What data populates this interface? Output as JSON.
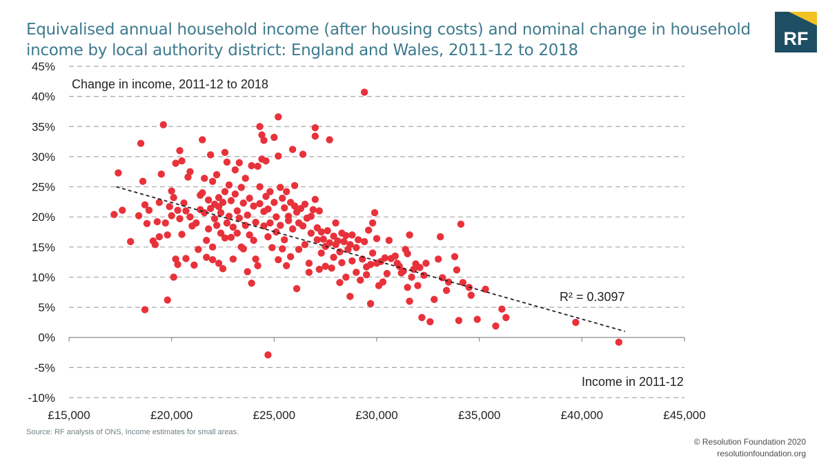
{
  "header": {
    "title": "Equivalised annual household income (after housing costs) and nominal change in household income by local authority district: England and Wales, 2011-12 to 2018"
  },
  "logo": {
    "text": "RF",
    "bg_color": "#1d4e63",
    "accent_color": "#f2c224"
  },
  "footer": {
    "source": "Source: RF analysis of ONS, Income estimates for small areas.",
    "copyright": "© Resolution Foundation 2020",
    "website": "resolutionfoundation.org"
  },
  "chart_data": {
    "type": "scatter",
    "title": "Equivalised annual household income (after housing costs) and nominal change in household income by local authority district: England and Wales, 2011-12 to 2018",
    "xlabel": "Income in 2011-12",
    "ylabel": "Change in income, 2011-12 to 2018",
    "xlim": [
      15000,
      45000
    ],
    "ylim": [
      -10,
      45
    ],
    "x_ticks": [
      15000,
      20000,
      25000,
      30000,
      35000,
      40000,
      45000
    ],
    "x_tick_labels": [
      "£15,000",
      "£20,000",
      "£25,000",
      "£30,000",
      "£35,000",
      "£40,000",
      "£45,000"
    ],
    "y_ticks": [
      -10,
      -5,
      0,
      5,
      10,
      15,
      20,
      25,
      30,
      35,
      40,
      45
    ],
    "y_tick_labels": [
      "-10%",
      "-5%",
      "0%",
      "5%",
      "10%",
      "15%",
      "20%",
      "25%",
      "30%",
      "35%",
      "40%",
      "45%"
    ],
    "grid": "horizontal dashed",
    "point_color": "#e8323b",
    "trendline": {
      "x": [
        17300,
        42100
      ],
      "y": [
        25.0,
        1.0
      ],
      "style": "dashed",
      "color": "#222222"
    },
    "r_squared_label": "R² = 0.3097",
    "points": [
      {
        "x": 17200,
        "y": 20.4
      },
      {
        "x": 17400,
        "y": 27.3
      },
      {
        "x": 17600,
        "y": 21.1
      },
      {
        "x": 18000,
        "y": 15.9
      },
      {
        "x": 18400,
        "y": 20.2
      },
      {
        "x": 18500,
        "y": 32.2
      },
      {
        "x": 18600,
        "y": 25.9
      },
      {
        "x": 18700,
        "y": 22.0
      },
      {
        "x": 18700,
        "y": 4.6
      },
      {
        "x": 18800,
        "y": 18.9
      },
      {
        "x": 18900,
        "y": 21.1
      },
      {
        "x": 19100,
        "y": 16.0
      },
      {
        "x": 19200,
        "y": 15.4
      },
      {
        "x": 19300,
        "y": 19.2
      },
      {
        "x": 19400,
        "y": 22.4
      },
      {
        "x": 19400,
        "y": 16.7
      },
      {
        "x": 19500,
        "y": 27.1
      },
      {
        "x": 19600,
        "y": 35.3
      },
      {
        "x": 19700,
        "y": 19.0
      },
      {
        "x": 19800,
        "y": 17.0
      },
      {
        "x": 19800,
        "y": 6.2
      },
      {
        "x": 19900,
        "y": 21.7
      },
      {
        "x": 20000,
        "y": 20.2
      },
      {
        "x": 20000,
        "y": 24.3
      },
      {
        "x": 20100,
        "y": 23.2
      },
      {
        "x": 20100,
        "y": 10.0
      },
      {
        "x": 20200,
        "y": 28.9
      },
      {
        "x": 20200,
        "y": 13.0
      },
      {
        "x": 20300,
        "y": 21.1
      },
      {
        "x": 20300,
        "y": 12.1
      },
      {
        "x": 20400,
        "y": 31.0
      },
      {
        "x": 20400,
        "y": 19.7
      },
      {
        "x": 20500,
        "y": 29.3
      },
      {
        "x": 20500,
        "y": 17.1
      },
      {
        "x": 20600,
        "y": 22.3
      },
      {
        "x": 20700,
        "y": 21.0
      },
      {
        "x": 20700,
        "y": 13.1
      },
      {
        "x": 20800,
        "y": 26.6
      },
      {
        "x": 20900,
        "y": 27.5
      },
      {
        "x": 20900,
        "y": 20.0
      },
      {
        "x": 21000,
        "y": 18.5
      },
      {
        "x": 21100,
        "y": 12.0
      },
      {
        "x": 21200,
        "y": 19.0
      },
      {
        "x": 21300,
        "y": 14.6
      },
      {
        "x": 21400,
        "y": 21.2
      },
      {
        "x": 21400,
        "y": 23.6
      },
      {
        "x": 21500,
        "y": 32.8
      },
      {
        "x": 21500,
        "y": 24.0
      },
      {
        "x": 21600,
        "y": 20.7
      },
      {
        "x": 21600,
        "y": 26.4
      },
      {
        "x": 21700,
        "y": 16.1
      },
      {
        "x": 21700,
        "y": 13.3
      },
      {
        "x": 21800,
        "y": 22.8
      },
      {
        "x": 21800,
        "y": 18.0
      },
      {
        "x": 21900,
        "y": 30.3
      },
      {
        "x": 21900,
        "y": 21.4
      },
      {
        "x": 22000,
        "y": 25.9
      },
      {
        "x": 22000,
        "y": 15.0
      },
      {
        "x": 22000,
        "y": 12.9
      },
      {
        "x": 22100,
        "y": 22.1
      },
      {
        "x": 22100,
        "y": 19.7
      },
      {
        "x": 22200,
        "y": 27.0
      },
      {
        "x": 22200,
        "y": 18.6
      },
      {
        "x": 22300,
        "y": 23.2
      },
      {
        "x": 22300,
        "y": 21.7
      },
      {
        "x": 22300,
        "y": 12.3
      },
      {
        "x": 22400,
        "y": 20.7
      },
      {
        "x": 22400,
        "y": 17.3
      },
      {
        "x": 22500,
        "y": 22.4
      },
      {
        "x": 22500,
        "y": 11.4
      },
      {
        "x": 22600,
        "y": 30.7
      },
      {
        "x": 22600,
        "y": 24.2
      },
      {
        "x": 22600,
        "y": 16.5
      },
      {
        "x": 22700,
        "y": 19.0
      },
      {
        "x": 22700,
        "y": 29.1
      },
      {
        "x": 22800,
        "y": 20.1
      },
      {
        "x": 22800,
        "y": 25.3
      },
      {
        "x": 22900,
        "y": 22.7
      },
      {
        "x": 22900,
        "y": 16.6
      },
      {
        "x": 23000,
        "y": 18.3
      },
      {
        "x": 23000,
        "y": 13.0
      },
      {
        "x": 23100,
        "y": 27.8
      },
      {
        "x": 23100,
        "y": 23.8
      },
      {
        "x": 23200,
        "y": 21.0
      },
      {
        "x": 23200,
        "y": 17.3
      },
      {
        "x": 23300,
        "y": 29.0
      },
      {
        "x": 23300,
        "y": 19.8
      },
      {
        "x": 23400,
        "y": 24.9
      },
      {
        "x": 23400,
        "y": 15.0
      },
      {
        "x": 23500,
        "y": 22.3
      },
      {
        "x": 23500,
        "y": 14.7
      },
      {
        "x": 23600,
        "y": 18.6
      },
      {
        "x": 23600,
        "y": 26.4
      },
      {
        "x": 23700,
        "y": 20.3
      },
      {
        "x": 23700,
        "y": 10.9
      },
      {
        "x": 23800,
        "y": 23.1
      },
      {
        "x": 23800,
        "y": 17.0
      },
      {
        "x": 23900,
        "y": 28.5
      },
      {
        "x": 23900,
        "y": 9.0
      },
      {
        "x": 24000,
        "y": 21.8
      },
      {
        "x": 24000,
        "y": 16.1
      },
      {
        "x": 24100,
        "y": 19.1
      },
      {
        "x": 24100,
        "y": 13.0
      },
      {
        "x": 24200,
        "y": 28.4
      },
      {
        "x": 24200,
        "y": 11.9
      },
      {
        "x": 24300,
        "y": 35.0
      },
      {
        "x": 24300,
        "y": 25.0
      },
      {
        "x": 24300,
        "y": 22.2
      },
      {
        "x": 24400,
        "y": 33.6
      },
      {
        "x": 24400,
        "y": 29.6
      },
      {
        "x": 24500,
        "y": 32.7
      },
      {
        "x": 24500,
        "y": 20.9
      },
      {
        "x": 24500,
        "y": 18.5
      },
      {
        "x": 24600,
        "y": 29.3
      },
      {
        "x": 24600,
        "y": 23.4
      },
      {
        "x": 24700,
        "y": 21.3
      },
      {
        "x": 24700,
        "y": 16.7
      },
      {
        "x": 24700,
        "y": -2.9
      },
      {
        "x": 24800,
        "y": 24.2
      },
      {
        "x": 24800,
        "y": 19.0
      },
      {
        "x": 24900,
        "y": 14.9
      },
      {
        "x": 25000,
        "y": 33.2
      },
      {
        "x": 25000,
        "y": 22.4
      },
      {
        "x": 25100,
        "y": 20.0
      },
      {
        "x": 25100,
        "y": 17.5
      },
      {
        "x": 25200,
        "y": 36.6
      },
      {
        "x": 25200,
        "y": 30.1
      },
      {
        "x": 25200,
        "y": 12.9
      },
      {
        "x": 25300,
        "y": 24.9
      },
      {
        "x": 25300,
        "y": 18.6
      },
      {
        "x": 25400,
        "y": 23.1
      },
      {
        "x": 25400,
        "y": 14.7
      },
      {
        "x": 25500,
        "y": 21.5
      },
      {
        "x": 25500,
        "y": 16.2
      },
      {
        "x": 25600,
        "y": 24.2
      },
      {
        "x": 25600,
        "y": 11.9
      },
      {
        "x": 25700,
        "y": 20.1
      },
      {
        "x": 25700,
        "y": 19.4
      },
      {
        "x": 25800,
        "y": 22.4
      },
      {
        "x": 25800,
        "y": 13.4
      },
      {
        "x": 25900,
        "y": 31.2
      },
      {
        "x": 25900,
        "y": 18.0
      },
      {
        "x": 26000,
        "y": 25.2
      },
      {
        "x": 26000,
        "y": 21.8
      },
      {
        "x": 26100,
        "y": 20.8
      },
      {
        "x": 26100,
        "y": 8.1
      },
      {
        "x": 26200,
        "y": 19.0
      },
      {
        "x": 26200,
        "y": 14.6
      },
      {
        "x": 26300,
        "y": 21.4
      },
      {
        "x": 26400,
        "y": 30.4
      },
      {
        "x": 26400,
        "y": 18.5
      },
      {
        "x": 26500,
        "y": 22.1
      },
      {
        "x": 26500,
        "y": 15.4
      },
      {
        "x": 26600,
        "y": 19.8
      },
      {
        "x": 26700,
        "y": 12.3
      },
      {
        "x": 26700,
        "y": 10.8
      },
      {
        "x": 26800,
        "y": 20.1
      },
      {
        "x": 26800,
        "y": 17.3
      },
      {
        "x": 26900,
        "y": 21.2
      },
      {
        "x": 27000,
        "y": 34.8
      },
      {
        "x": 27000,
        "y": 33.4
      },
      {
        "x": 27000,
        "y": 22.9
      },
      {
        "x": 27100,
        "y": 18.2
      },
      {
        "x": 27100,
        "y": 16.2
      },
      {
        "x": 27200,
        "y": 21.0
      },
      {
        "x": 27200,
        "y": 11.3
      },
      {
        "x": 27300,
        "y": 17.5
      },
      {
        "x": 27300,
        "y": 14.0
      },
      {
        "x": 27400,
        "y": 16.3
      },
      {
        "x": 27500,
        "y": 15.1
      },
      {
        "x": 27500,
        "y": 11.8
      },
      {
        "x": 27600,
        "y": 17.7
      },
      {
        "x": 27700,
        "y": 32.8
      },
      {
        "x": 27700,
        "y": 15.7
      },
      {
        "x": 27800,
        "y": 11.5
      },
      {
        "x": 27900,
        "y": 16.8
      },
      {
        "x": 27900,
        "y": 13.3
      },
      {
        "x": 28000,
        "y": 19.0
      },
      {
        "x": 28000,
        "y": 15.4
      },
      {
        "x": 28100,
        "y": 16.0
      },
      {
        "x": 28200,
        "y": 14.2
      },
      {
        "x": 28200,
        "y": 9.1
      },
      {
        "x": 28300,
        "y": 17.3
      },
      {
        "x": 28300,
        "y": 12.4
      },
      {
        "x": 28400,
        "y": 15.9
      },
      {
        "x": 28500,
        "y": 16.9
      },
      {
        "x": 28500,
        "y": 10.0
      },
      {
        "x": 28600,
        "y": 14.6
      },
      {
        "x": 28700,
        "y": 15.4
      },
      {
        "x": 28700,
        "y": 6.8
      },
      {
        "x": 28800,
        "y": 17.0
      },
      {
        "x": 28800,
        "y": 12.7
      },
      {
        "x": 29000,
        "y": 14.9
      },
      {
        "x": 29000,
        "y": 10.8
      },
      {
        "x": 29100,
        "y": 16.2
      },
      {
        "x": 29200,
        "y": 9.5
      },
      {
        "x": 29300,
        "y": 13.0
      },
      {
        "x": 29400,
        "y": 40.7
      },
      {
        "x": 29400,
        "y": 15.9
      },
      {
        "x": 29500,
        "y": 10.4
      },
      {
        "x": 29500,
        "y": 11.7
      },
      {
        "x": 29600,
        "y": 17.8
      },
      {
        "x": 29700,
        "y": 12.1
      },
      {
        "x": 29700,
        "y": 5.6
      },
      {
        "x": 29800,
        "y": 19.0
      },
      {
        "x": 29800,
        "y": 14.0
      },
      {
        "x": 29900,
        "y": 20.7
      },
      {
        "x": 30000,
        "y": 16.4
      },
      {
        "x": 30000,
        "y": 12.3
      },
      {
        "x": 30100,
        "y": 8.6
      },
      {
        "x": 30200,
        "y": 12.6
      },
      {
        "x": 30300,
        "y": 9.2
      },
      {
        "x": 30400,
        "y": 13.2
      },
      {
        "x": 30500,
        "y": 10.6
      },
      {
        "x": 30600,
        "y": 16.1
      },
      {
        "x": 30700,
        "y": 13.1
      },
      {
        "x": 30900,
        "y": 13.5
      },
      {
        "x": 31000,
        "y": 12.3
      },
      {
        "x": 31100,
        "y": 11.8
      },
      {
        "x": 31200,
        "y": 10.7
      },
      {
        "x": 31300,
        "y": 11.0
      },
      {
        "x": 31400,
        "y": 14.6
      },
      {
        "x": 31500,
        "y": 13.9
      },
      {
        "x": 31500,
        "y": 8.3
      },
      {
        "x": 31600,
        "y": 17.0
      },
      {
        "x": 31600,
        "y": 6.0
      },
      {
        "x": 31700,
        "y": 10.0
      },
      {
        "x": 31800,
        "y": 11.3
      },
      {
        "x": 31900,
        "y": 12.2
      },
      {
        "x": 32000,
        "y": 8.6
      },
      {
        "x": 32100,
        "y": 11.6
      },
      {
        "x": 32200,
        "y": 3.3
      },
      {
        "x": 32300,
        "y": 10.3
      },
      {
        "x": 32400,
        "y": 12.3
      },
      {
        "x": 32600,
        "y": 2.6
      },
      {
        "x": 32800,
        "y": 6.3
      },
      {
        "x": 33000,
        "y": 13.0
      },
      {
        "x": 33100,
        "y": 16.7
      },
      {
        "x": 33200,
        "y": 9.9
      },
      {
        "x": 33400,
        "y": 7.8
      },
      {
        "x": 33500,
        "y": 9.2
      },
      {
        "x": 33800,
        "y": 13.4
      },
      {
        "x": 33900,
        "y": 11.2
      },
      {
        "x": 34000,
        "y": 2.8
      },
      {
        "x": 34100,
        "y": 18.8
      },
      {
        "x": 34200,
        "y": 9.1
      },
      {
        "x": 34500,
        "y": 8.3
      },
      {
        "x": 34600,
        "y": 7.0
      },
      {
        "x": 34900,
        "y": 3.0
      },
      {
        "x": 35300,
        "y": 8.0
      },
      {
        "x": 35800,
        "y": 1.9
      },
      {
        "x": 36100,
        "y": 4.7
      },
      {
        "x": 36300,
        "y": 3.3
      },
      {
        "x": 39700,
        "y": 2.5
      },
      {
        "x": 41800,
        "y": -0.8
      }
    ]
  }
}
